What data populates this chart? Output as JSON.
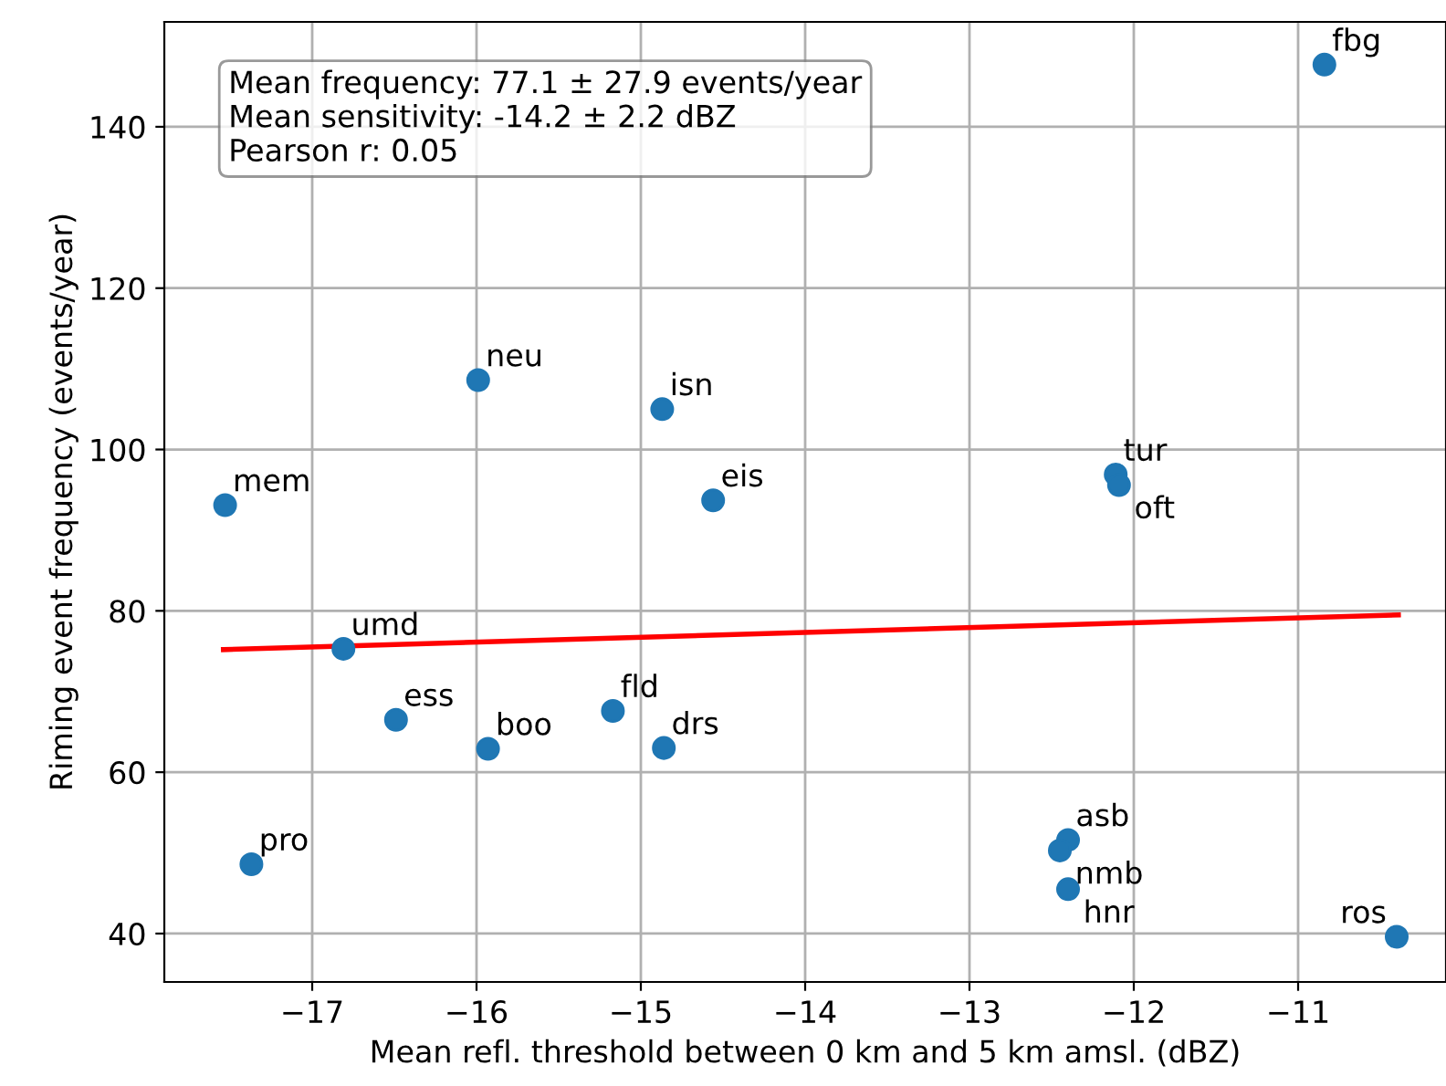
{
  "chart_data": {
    "type": "scatter",
    "xlabel": "Mean refl. threshold between 0 km and 5 km amsl. (dBZ)",
    "ylabel": "Riming event frequency (events/year)",
    "xlim": [
      -17.9,
      -10.1
    ],
    "ylim": [
      34,
      153
    ],
    "xticks": [
      -17,
      -16,
      -15,
      -14,
      -13,
      -12,
      -11
    ],
    "yticks": [
      40,
      60,
      80,
      100,
      120,
      140
    ],
    "grid": true,
    "marker": "circle",
    "series": [
      {
        "color": "#1f77b4",
        "x": [
          -10.84,
          -15.99,
          -14.87,
          -17.53,
          -14.56,
          -12.11,
          -12.09,
          -16.81,
          -16.49,
          -15.93,
          -15.17,
          -14.86,
          -17.37,
          -12.4,
          -12.45,
          -12.4,
          -10.4
        ],
        "values": [
          147.7,
          108.6,
          105.0,
          93.1,
          93.7,
          96.9,
          95.6,
          75.3,
          66.5,
          62.9,
          67.6,
          63.0,
          48.6,
          51.6,
          50.3,
          45.5,
          39.6
        ]
      },
      {
        "type": "line",
        "color": "#ff0000",
        "marker": "none",
        "x": [
          -17.54,
          -10.39
        ],
        "values": [
          75.2,
          79.5
        ]
      }
    ],
    "annotations": [
      {
        "text": "fbg",
        "x": -10.84,
        "y": 147.7
      },
      {
        "text": "neu",
        "x": -15.99,
        "y": 108.6
      },
      {
        "text": "isn",
        "x": -14.87,
        "y": 105.0
      },
      {
        "text": "mem",
        "x": -17.53,
        "y": 93.1
      },
      {
        "text": "eis",
        "x": -14.56,
        "y": 93.7
      },
      {
        "text": "tur",
        "x": -12.11,
        "y": 96.9
      },
      {
        "text": "oft",
        "x": -12.09,
        "y": 95.6
      },
      {
        "text": "umd",
        "x": -16.81,
        "y": 75.3
      },
      {
        "text": "ess",
        "x": -16.49,
        "y": 66.5
      },
      {
        "text": "boo",
        "x": -15.93,
        "y": 62.9
      },
      {
        "text": "fld",
        "x": -15.17,
        "y": 67.6
      },
      {
        "text": "drs",
        "x": -14.86,
        "y": 63.0
      },
      {
        "text": "pro",
        "x": -17.37,
        "y": 48.6
      },
      {
        "text": "asb",
        "x": -12.4,
        "y": 51.6
      },
      {
        "text": "nmb",
        "x": -12.45,
        "y": 50.3
      },
      {
        "text": "hnr",
        "x": -12.4,
        "y": 45.5
      },
      {
        "text": "ros",
        "x": -10.4,
        "y": 39.6
      },
      "Mean frequency: 77.1 ± 27.9 events/year\nMean sensitivity: -14.2 ± 2.2 dBZ\nPearson r: 0.05"
    ]
  }
}
